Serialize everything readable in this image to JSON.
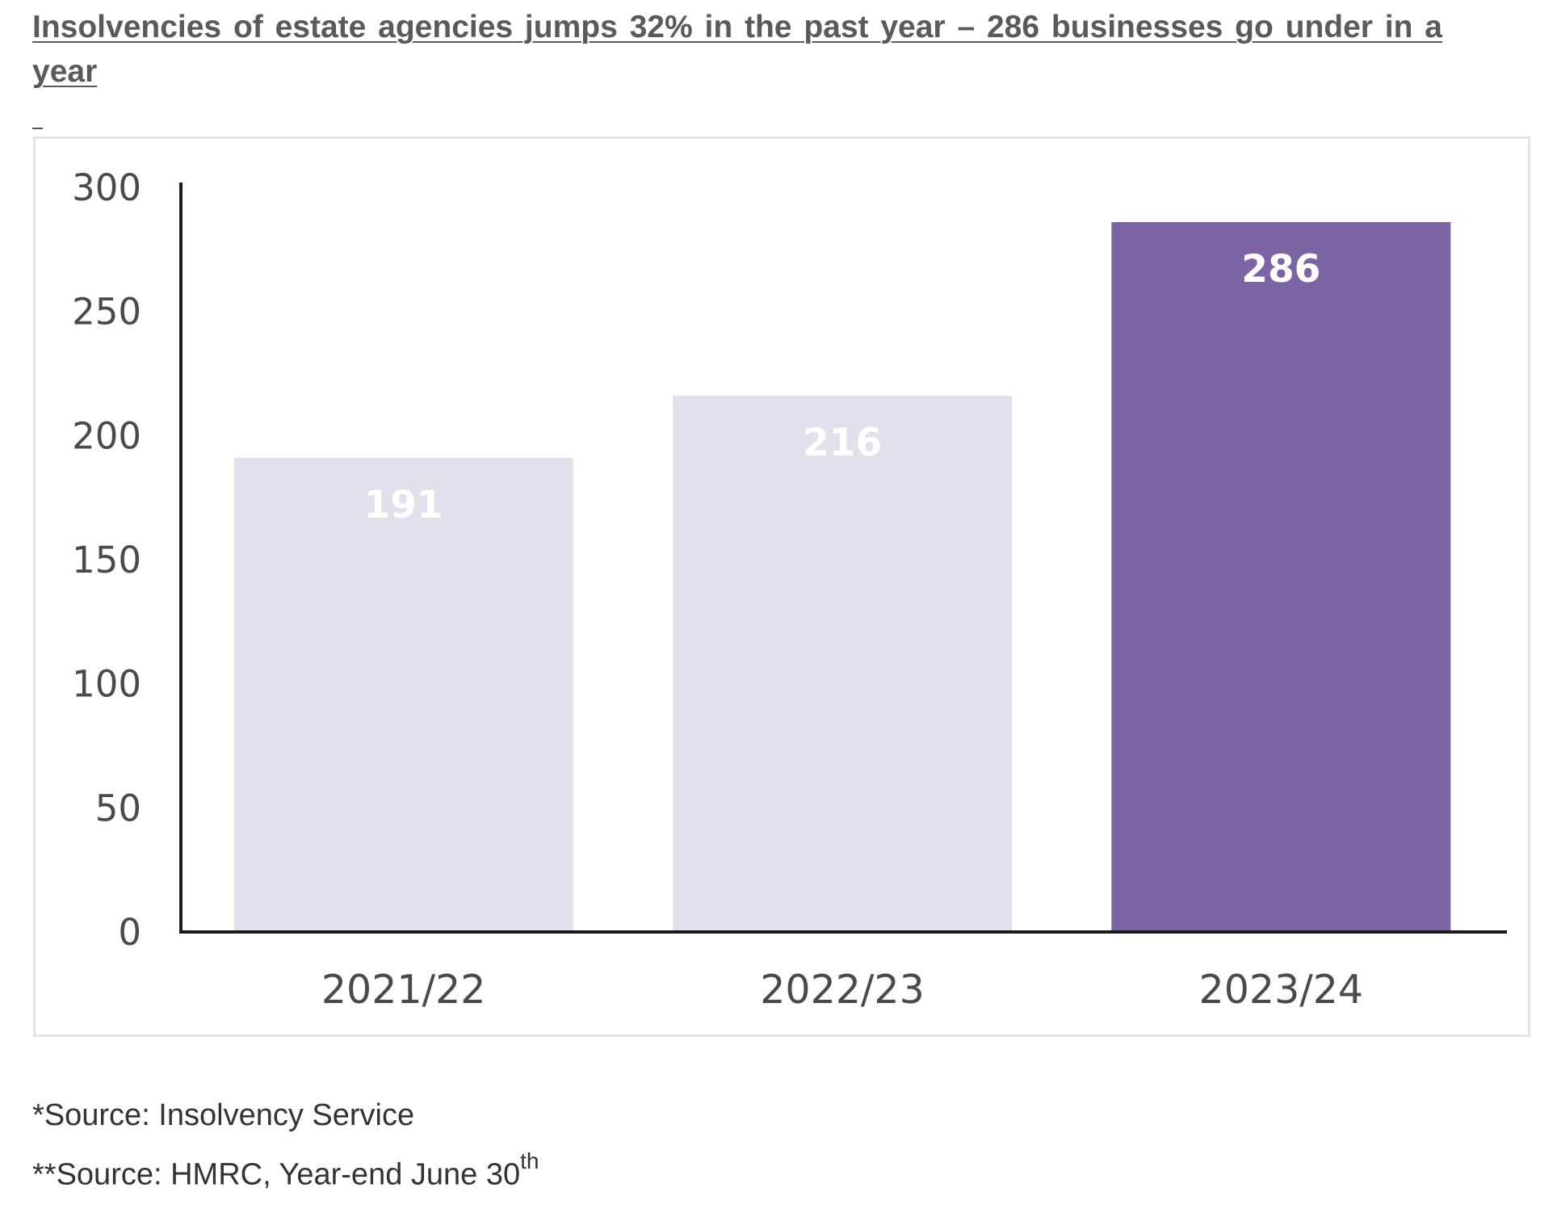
{
  "headline": {
    "line1": "Insolvencies of estate agencies jumps 32% in the past year – 286 businesses go under in a",
    "line2": "year",
    "dash": "-"
  },
  "colors": {
    "bar_light": "#e3dfec",
    "bar_highlight": "#7d64a5",
    "axis": "#1a1a1a",
    "tick_text": "#4a4a4a",
    "frame_border": "#e3e3e3"
  },
  "chart_data": {
    "type": "bar",
    "title": "",
    "xlabel": "",
    "ylabel": "",
    "categories": [
      "2021/22",
      "2022/23",
      "2023/24"
    ],
    "values": [
      191,
      216,
      286
    ],
    "data_labels": [
      "191",
      "216",
      "286"
    ],
    "highlight_index": 2,
    "ylim": [
      0,
      300
    ],
    "yticks": [
      0,
      50,
      100,
      150,
      200,
      250,
      300
    ],
    "grid": false,
    "legend": "none"
  },
  "footnotes": {
    "source1": "*Source: Insolvency Service",
    "source2": "**Source: HMRC, Year-end June 30",
    "source2_sup": "th"
  }
}
